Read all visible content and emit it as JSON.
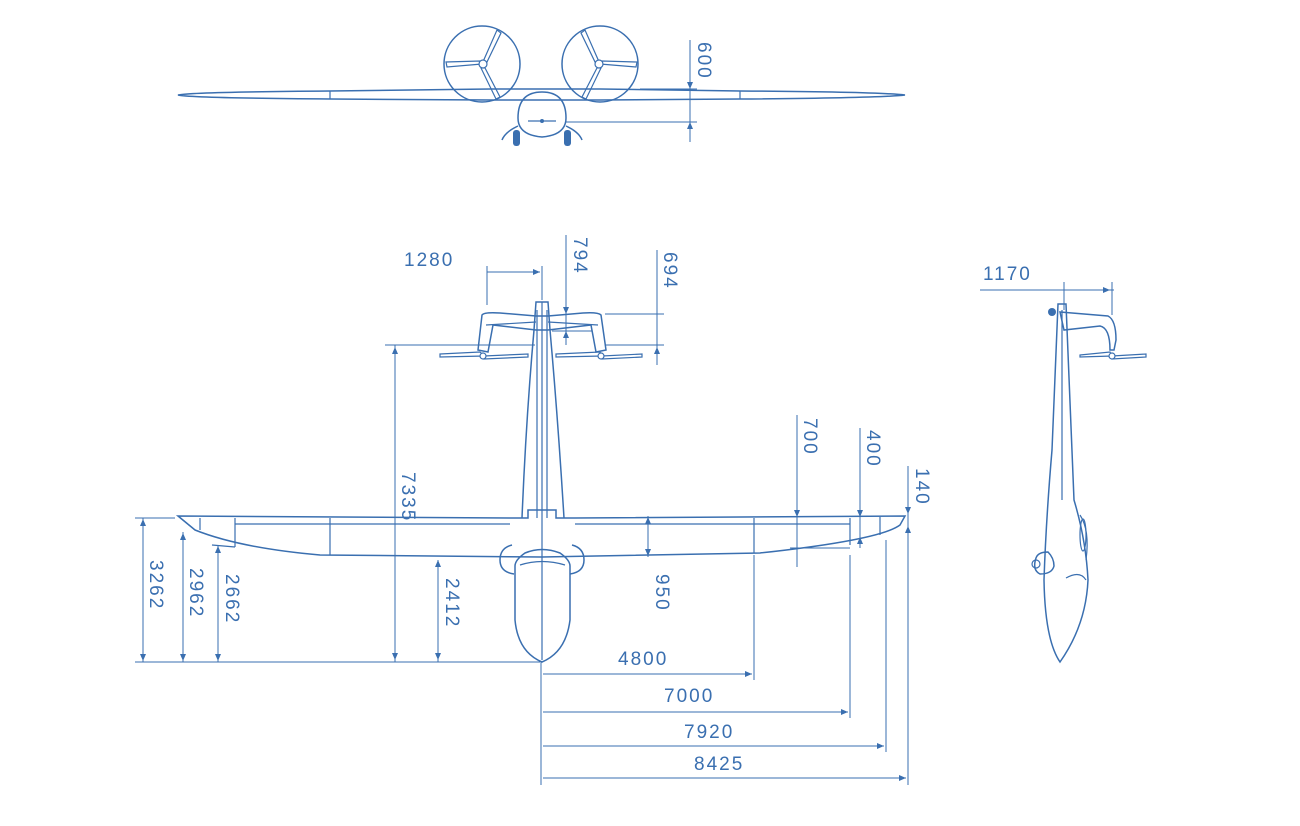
{
  "dimensions": {
    "front_prop_height": "600",
    "tail_offset": "1280",
    "tail_chord_794": "794",
    "tail_height_694": "694",
    "fuselage_length": "7335",
    "le_offset_700": "700",
    "le_offset_400": "400",
    "tip_140": "140",
    "wing_chord_950": "950",
    "nose_to_le": "2412",
    "tip_te_3262": "3262",
    "te_2962": "2962",
    "te_2662": "2662",
    "half_span_4800": "4800",
    "half_span_7000": "7000",
    "half_span_7920": "7920",
    "half_span_8425": "8425",
    "side_tail_1170": "1170"
  },
  "colors": {
    "line": "#3a6fb0",
    "background": "#ffffff"
  }
}
